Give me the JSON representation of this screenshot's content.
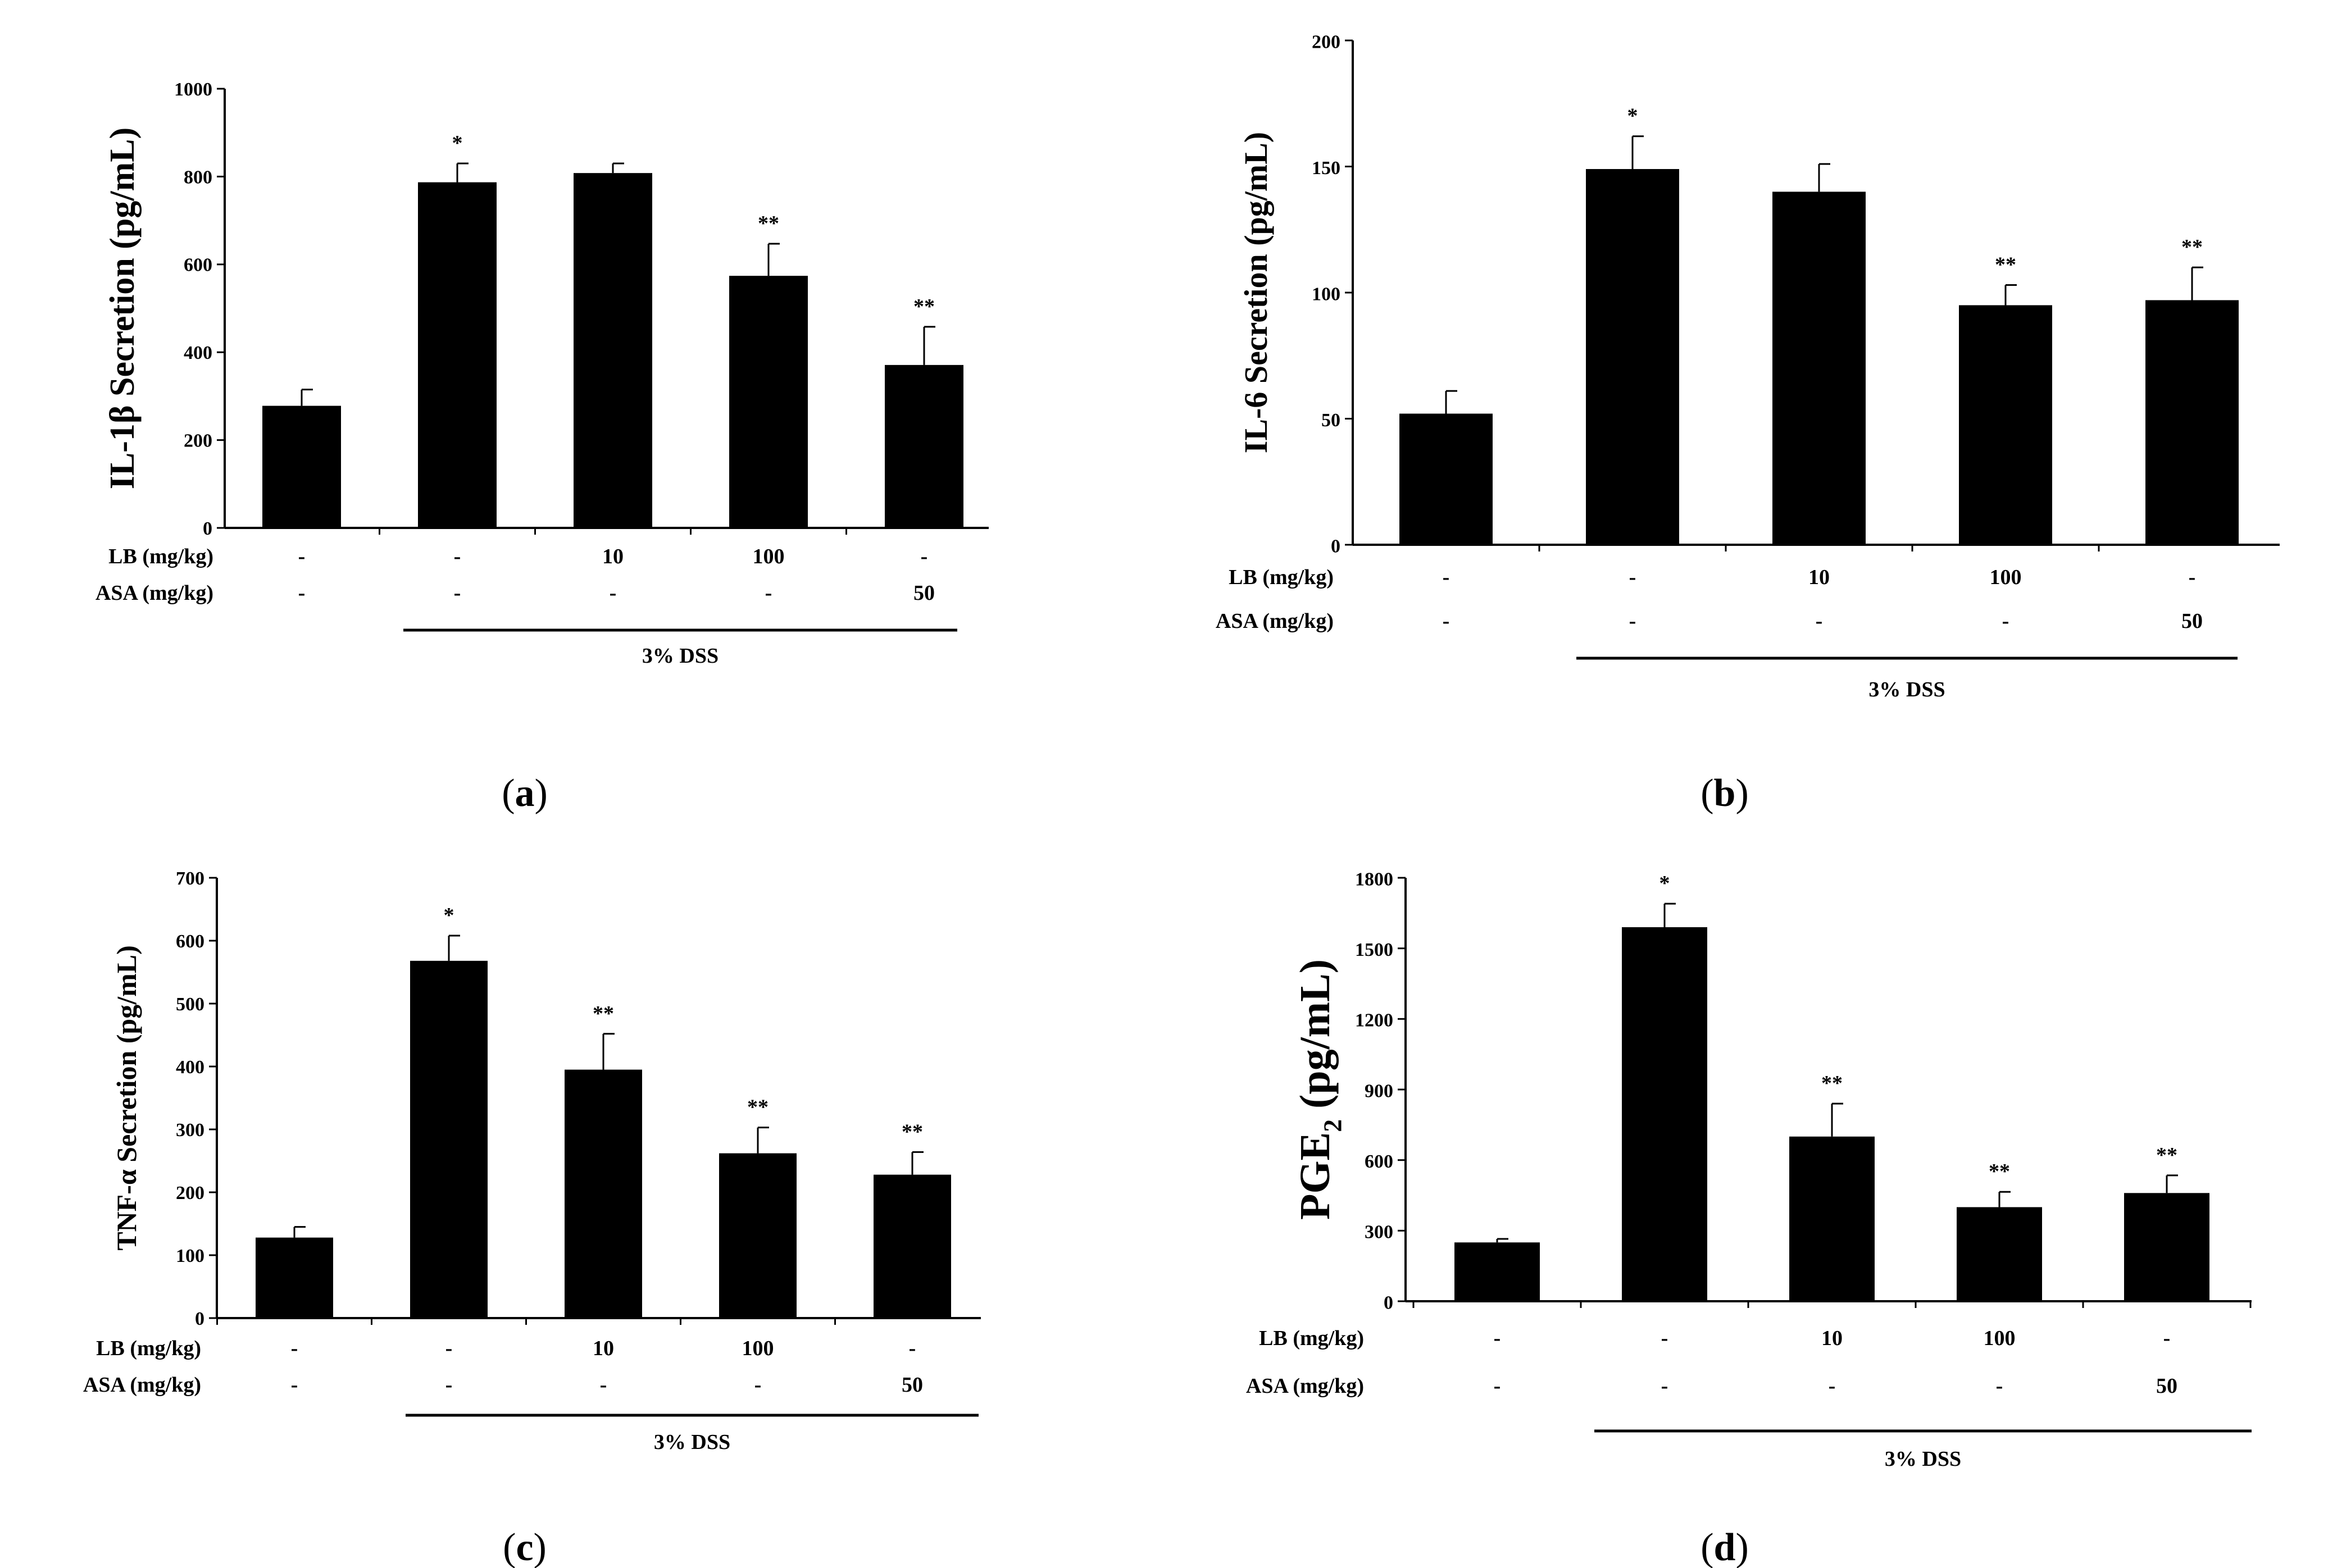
{
  "chart_data": [
    {
      "type": "bar",
      "panel_label": "a",
      "ylabel": "IL-1β Secretion (pg/mL)",
      "ylim": [
        0,
        1000
      ],
      "yticks": [
        0,
        200,
        400,
        600,
        800,
        1000
      ],
      "values": [
        278,
        787,
        808,
        574,
        371
      ],
      "errors": [
        37,
        43,
        22,
        73,
        87
      ],
      "significance": [
        "",
        "*",
        "",
        "**",
        "**"
      ],
      "treatments": [
        {
          "label": "LB (mg/kg)",
          "values": [
            "-",
            "-",
            "10",
            "100",
            "-"
          ]
        },
        {
          "label": "ASA (mg/kg)",
          "values": [
            "-",
            "-",
            "-",
            "-",
            "50"
          ]
        }
      ],
      "group_label": "3% DSS"
    },
    {
      "type": "bar",
      "panel_label": "b",
      "ylabel": "IL-6 Secretion (pg/mL)",
      "ylim": [
        0,
        200
      ],
      "yticks": [
        0,
        50,
        100,
        150,
        200
      ],
      "values": [
        52,
        149,
        140,
        95,
        97
      ],
      "errors": [
        9,
        13,
        11,
        8,
        13
      ],
      "significance": [
        "",
        "*",
        "",
        "**",
        "**"
      ],
      "treatments": [
        {
          "label": "LB (mg/kg)",
          "values": [
            "-",
            "-",
            "10",
            "100",
            "-"
          ]
        },
        {
          "label": "ASA (mg/kg)",
          "values": [
            "-",
            "-",
            "-",
            "-",
            "50"
          ]
        }
      ],
      "group_label": "3% DSS"
    },
    {
      "type": "bar",
      "panel_label": "c",
      "ylabel": "TNF-α Secretion (pg/mL)",
      "ylim": [
        0,
        700
      ],
      "yticks": [
        0,
        100,
        200,
        300,
        400,
        500,
        600,
        700
      ],
      "values": [
        128,
        568,
        395,
        262,
        228
      ],
      "errors": [
        17,
        40,
        57,
        41,
        36
      ],
      "significance": [
        "",
        "*",
        "**",
        "**",
        "**"
      ],
      "treatments": [
        {
          "label": "LB (mg/kg)",
          "values": [
            "-",
            "-",
            "10",
            "100",
            "-"
          ]
        },
        {
          "label": "ASA (mg/kg)",
          "values": [
            "-",
            "-",
            "-",
            "-",
            "50"
          ]
        }
      ],
      "group_label": "3% DSS"
    },
    {
      "type": "bar",
      "panel_label": "d",
      "ylabel": "PGE",
      "ylabel_sub": "2",
      "ylabel_unit": " (pg/mL)",
      "ylim": [
        0,
        1800
      ],
      "yticks": [
        0,
        300,
        600,
        900,
        1200,
        1500,
        1800
      ],
      "values": [
        250,
        1590,
        700,
        400,
        460
      ],
      "errors": [
        15,
        100,
        140,
        65,
        75
      ],
      "significance": [
        "",
        "*",
        "**",
        "**",
        "**"
      ],
      "treatments": [
        {
          "label": "LB (mg/kg)",
          "values": [
            "-",
            "-",
            "10",
            "100",
            "-"
          ]
        },
        {
          "label": "ASA (mg/kg)",
          "values": [
            "-",
            "-",
            "-",
            "-",
            "50"
          ]
        }
      ],
      "group_label": "3% DSS"
    }
  ]
}
